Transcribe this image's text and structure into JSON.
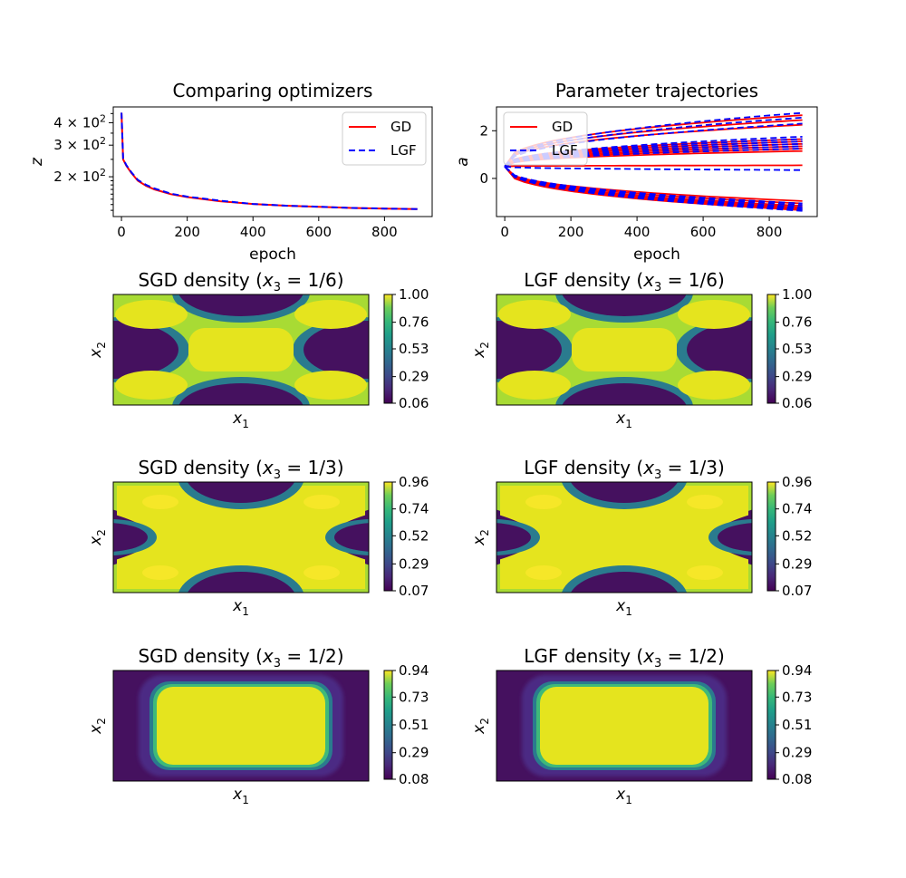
{
  "chart_data": [
    {
      "type": "line",
      "id": "loss",
      "title": "Comparing optimizers",
      "xlabel": "epoch",
      "ylabel": "z",
      "yscale": "log",
      "xlim": [
        -25,
        945
      ],
      "ylim": [
        120,
        490
      ],
      "xticks": [
        0,
        200,
        400,
        600,
        800
      ],
      "yticks": [
        {
          "value": 200,
          "label_base": "2 × 10",
          "label_exp": "2"
        },
        {
          "value": 300,
          "label_base": "3 × 10",
          "label_exp": "2"
        },
        {
          "value": 400,
          "label_base": "4 × 10",
          "label_exp": "2"
        }
      ],
      "legend": {
        "position": "upper right",
        "entries": [
          "GD",
          "LGF"
        ]
      },
      "series": [
        {
          "name": "GD",
          "color": "#ff0000",
          "dash": "solid",
          "x": [
            0,
            5,
            15,
            30,
            50,
            75,
            100,
            150,
            200,
            300,
            400,
            500,
            600,
            700,
            800,
            900
          ],
          "values": [
            455,
            250,
            230,
            210,
            190,
            178,
            170,
            160,
            154,
            146,
            141,
            138,
            136,
            134,
            133,
            132
          ]
        },
        {
          "name": "LGF",
          "color": "#0000ff",
          "dash": "dashed",
          "x": [
            0,
            5,
            15,
            30,
            50,
            75,
            100,
            150,
            200,
            300,
            400,
            500,
            600,
            700,
            800,
            900
          ],
          "values": [
            455,
            252,
            232,
            212,
            192,
            180,
            172,
            161,
            155,
            147,
            141,
            138,
            136,
            134,
            133,
            132
          ]
        }
      ]
    },
    {
      "type": "line",
      "id": "trajectories",
      "title": "Parameter trajectories",
      "xlabel": "epoch",
      "ylabel": "a",
      "xlim": [
        -25,
        945
      ],
      "ylim": [
        -1.6,
        3.0
      ],
      "xticks": [
        0,
        200,
        400,
        600,
        800
      ],
      "yticks": [
        0,
        2
      ],
      "legend": {
        "position": "upper left",
        "entries": [
          "GD",
          "LGF"
        ]
      },
      "start_value": 0.5,
      "gd_finals": [
        2.65,
        2.45,
        2.25,
        1.65,
        1.55,
        1.45,
        1.35,
        1.25,
        1.15,
        0.55,
        -0.95,
        -1.05,
        -1.15,
        -1.22,
        -1.28,
        -1.33
      ],
      "lgf_finals": [
        2.75,
        2.55,
        2.3,
        1.75,
        1.65,
        1.55,
        1.45,
        1.35,
        1.25,
        0.35,
        -1.05,
        -1.12,
        -1.2,
        -1.26,
        -1.31,
        -1.36
      ]
    },
    {
      "type": "heatmap",
      "id": "sgd16",
      "title_prefix": "SGD density (",
      "title_var": "x",
      "title_sub": "3",
      "title_suffix": " = 1/6)",
      "xlabel": "x",
      "xlabel_sub": "1",
      "ylabel": "x",
      "ylabel_sub": "2",
      "pattern": "x-shape-inner",
      "colorbar": [
        0.06,
        0.29,
        0.53,
        0.76,
        1.0
      ],
      "range": [
        0.06,
        1.0
      ]
    },
    {
      "type": "heatmap",
      "id": "lgf16",
      "title_prefix": "LGF density (",
      "title_var": "x",
      "title_sub": "3",
      "title_suffix": " = 1/6)",
      "xlabel": "x",
      "xlabel_sub": "1",
      "ylabel": "x",
      "ylabel_sub": "2",
      "pattern": "x-shape-inner",
      "colorbar": [
        0.06,
        0.29,
        0.53,
        0.76,
        1.0
      ],
      "range": [
        0.06,
        1.0
      ]
    },
    {
      "type": "heatmap",
      "id": "sgd13",
      "title_prefix": "SGD density (",
      "title_var": "x",
      "title_sub": "3",
      "title_suffix": " = 1/3)",
      "xlabel": "x",
      "xlabel_sub": "1",
      "ylabel": "x",
      "ylabel_sub": "2",
      "pattern": "x-shape",
      "colorbar": [
        0.07,
        0.29,
        0.52,
        0.74,
        0.96
      ],
      "range": [
        0.07,
        0.96
      ]
    },
    {
      "type": "heatmap",
      "id": "lgf13",
      "title_prefix": "LGF density (",
      "title_var": "x",
      "title_sub": "3",
      "title_suffix": " = 1/3)",
      "xlabel": "x",
      "xlabel_sub": "1",
      "ylabel": "x",
      "ylabel_sub": "2",
      "pattern": "x-shape",
      "colorbar": [
        0.07,
        0.29,
        0.52,
        0.74,
        0.96
      ],
      "range": [
        0.07,
        0.96
      ]
    },
    {
      "type": "heatmap",
      "id": "sgd12",
      "title_prefix": "SGD density (",
      "title_var": "x",
      "title_sub": "3",
      "title_suffix": " = 1/2)",
      "xlabel": "x",
      "xlabel_sub": "1",
      "ylabel": "x",
      "ylabel_sub": "2",
      "pattern": "rounded-rect",
      "colorbar": [
        0.08,
        0.29,
        0.51,
        0.73,
        0.94
      ],
      "range": [
        0.08,
        0.94
      ]
    },
    {
      "type": "heatmap",
      "id": "lgf12",
      "title_prefix": "LGF density (",
      "title_var": "x",
      "title_sub": "3",
      "title_suffix": " = 1/2)",
      "xlabel": "x",
      "xlabel_sub": "1",
      "ylabel": "x",
      "ylabel_sub": "2",
      "pattern": "rounded-rect",
      "colorbar": [
        0.08,
        0.29,
        0.51,
        0.73,
        0.94
      ],
      "range": [
        0.08,
        0.94
      ]
    }
  ]
}
